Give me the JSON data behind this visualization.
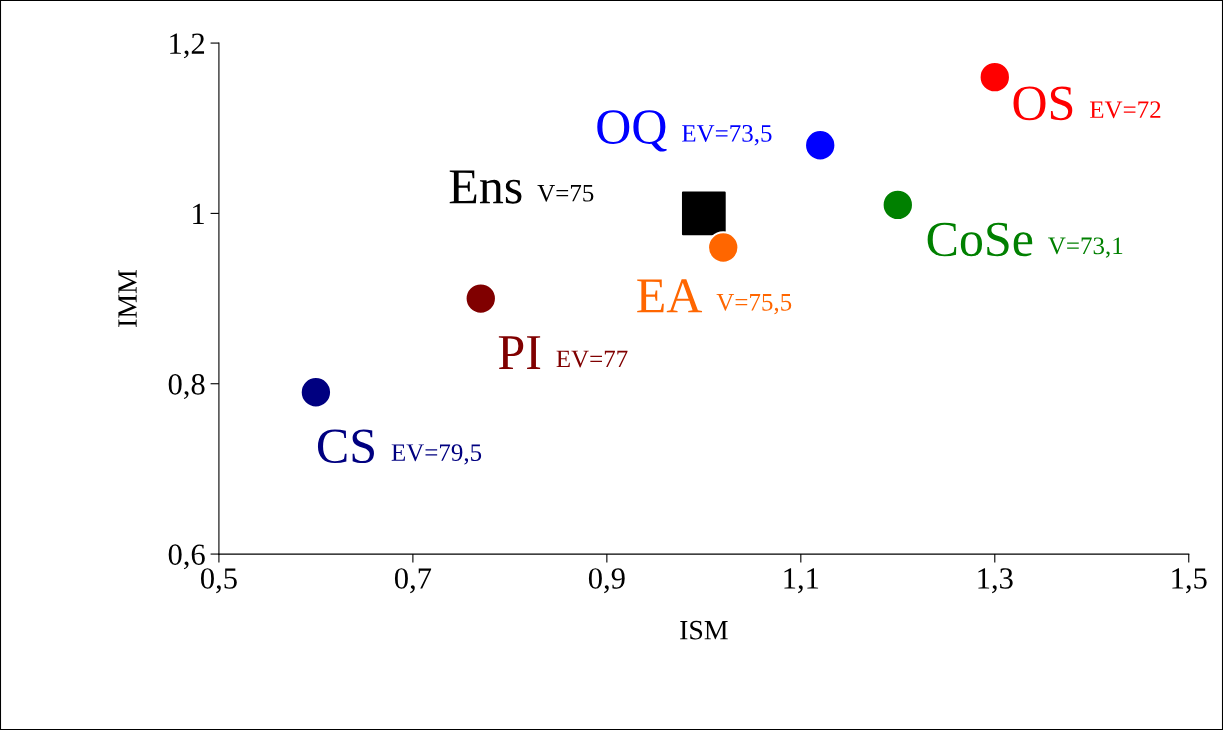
{
  "chart_data": {
    "type": "scatter",
    "xlabel": "ISM",
    "ylabel": "IMM",
    "xlim": [
      0.5,
      1.5
    ],
    "ylim": [
      0.6,
      1.2
    ],
    "xticks": [
      {
        "value": 0.5,
        "label": "0,5"
      },
      {
        "value": 0.7,
        "label": "0,7"
      },
      {
        "value": 0.9,
        "label": "0,9"
      },
      {
        "value": 1.1,
        "label": "1,1"
      },
      {
        "value": 1.3,
        "label": "1,3"
      },
      {
        "value": 1.5,
        "label": "1,5"
      }
    ],
    "yticks": [
      {
        "value": 0.6,
        "label": "0,6"
      },
      {
        "value": 0.8,
        "label": "0,8"
      },
      {
        "value": 1.0,
        "label": "1"
      },
      {
        "value": 1.2,
        "label": "1,2"
      }
    ],
    "grid": false,
    "legend": false,
    "series": [
      {
        "name": "OS",
        "color": "#ff0000",
        "marker": "circle",
        "x": [
          1.3
        ],
        "values": [
          1.16
        ]
      },
      {
        "name": "OQ",
        "color": "#0000ff",
        "marker": "circle",
        "x": [
          1.12
        ],
        "values": [
          1.08
        ]
      },
      {
        "name": "CoSe",
        "color": "#008000",
        "marker": "circle",
        "x": [
          1.2
        ],
        "values": [
          1.01
        ]
      },
      {
        "name": "Ens",
        "color": "#000000",
        "marker": "square",
        "x": [
          1.0
        ],
        "values": [
          1.0
        ]
      },
      {
        "name": "EA",
        "color": "#ff6600",
        "marker": "circle",
        "x": [
          1.02
        ],
        "values": [
          0.96
        ]
      },
      {
        "name": "PI",
        "color": "#800000",
        "marker": "circle",
        "x": [
          0.77
        ],
        "values": [
          0.9
        ]
      },
      {
        "name": "CS",
        "color": "#000080",
        "marker": "circle",
        "x": [
          0.6
        ],
        "values": [
          0.79
        ]
      }
    ],
    "annotations": [
      "EV=72",
      "EV=73,5",
      "V=73,1",
      "V=75",
      "V=75,5",
      "EV=77",
      "EV=79,5"
    ]
  }
}
